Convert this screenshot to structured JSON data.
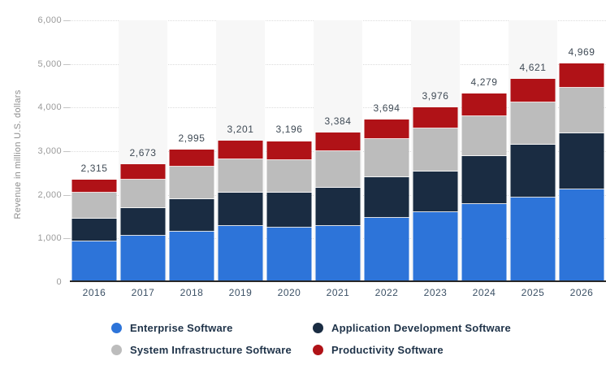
{
  "chart_data": {
    "type": "bar",
    "stacked": true,
    "title": "",
    "xlabel": "",
    "ylabel": "Revenue in million U.S. dollars",
    "ylim": [
      0,
      6000
    ],
    "y_tick_step": 1000,
    "y_tick_labels": [
      "6,000",
      "5,000",
      "4,000",
      "3,000",
      "2,000",
      "1,000",
      "0"
    ],
    "grid": "horizontal-dotted",
    "legend_position": "bottom",
    "categories": [
      "2016",
      "2017",
      "2018",
      "2019",
      "2020",
      "2021",
      "2022",
      "2023",
      "2024",
      "2025",
      "2026"
    ],
    "series": [
      {
        "name": "Enterprise Software",
        "color": "#2d74d9",
        "values": [
          895,
          1020,
          1115,
          1240,
          1210,
          1250,
          1440,
          1570,
          1750,
          1905,
          2095
        ]
      },
      {
        "name": "Application Development Software",
        "color": "#1a2c42",
        "values": [
          515,
          640,
          750,
          765,
          810,
          875,
          920,
          930,
          1095,
          1205,
          1285
        ]
      },
      {
        "name": "System Infrastructure Software",
        "color": "#bcbcbc",
        "values": [
          610,
          650,
          745,
          775,
          745,
          840,
          875,
          980,
          920,
          965,
          1040
        ]
      },
      {
        "name": "Productivity Software",
        "color": "#b01217",
        "values": [
          295,
          363,
          385,
          421,
          431,
          419,
          459,
          496,
          514,
          546,
          549
        ]
      }
    ],
    "totals": [
      2315,
      2673,
      2995,
      3201,
      3196,
      3384,
      3694,
      3976,
      4279,
      4621,
      4969
    ],
    "total_labels": [
      "2,315",
      "2,673",
      "2,995",
      "3,201",
      "3,196",
      "3,384",
      "3,694",
      "3,976",
      "4,279",
      "4,621",
      "4,969"
    ],
    "striped_category_indices": [
      1,
      3,
      5,
      7,
      9
    ],
    "stripe_color": "#f7f7f7"
  },
  "axis": {
    "y_title": "Revenue in million U.S. dollars"
  }
}
